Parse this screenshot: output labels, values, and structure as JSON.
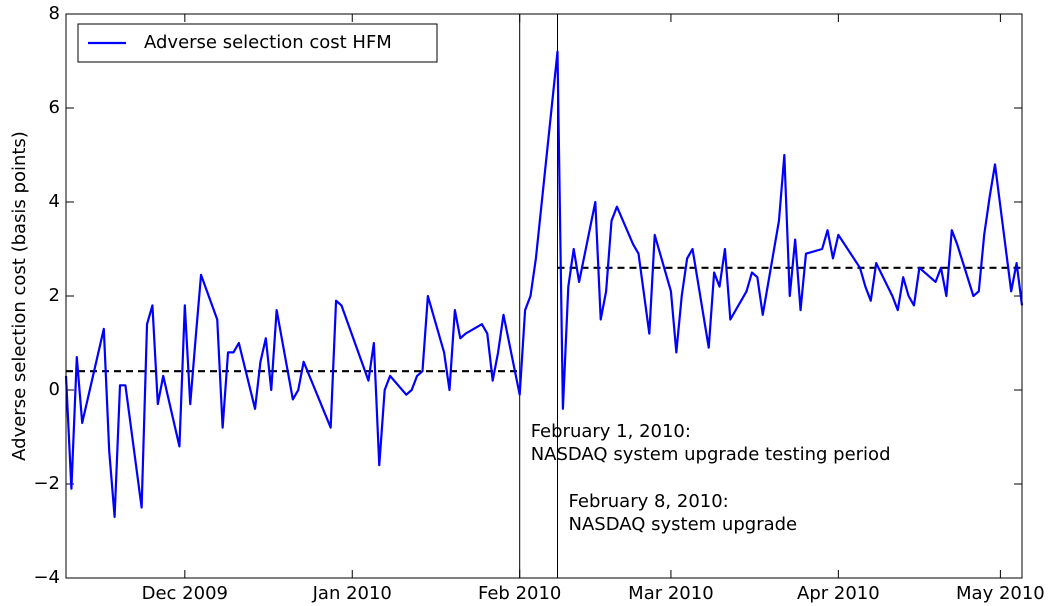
{
  "chart_data": {
    "type": "line",
    "ylabel": "Adverse selection cost (basis points)",
    "x": [
      "2009-11-09",
      "2009-11-10",
      "2009-11-11",
      "2009-11-12",
      "2009-11-16",
      "2009-11-17",
      "2009-11-18",
      "2009-11-19",
      "2009-11-20",
      "2009-11-23",
      "2009-11-24",
      "2009-11-25",
      "2009-11-26",
      "2009-11-27",
      "2009-11-30",
      "2009-12-01",
      "2009-12-02",
      "2009-12-03",
      "2009-12-04",
      "2009-12-07",
      "2009-12-08",
      "2009-12-09",
      "2009-12-10",
      "2009-12-11",
      "2009-12-14",
      "2009-12-15",
      "2009-12-16",
      "2009-12-17",
      "2009-12-18",
      "2009-12-21",
      "2009-12-22",
      "2009-12-23",
      "2009-12-28",
      "2009-12-29",
      "2009-12-30",
      "2010-01-04",
      "2010-01-05",
      "2010-01-06",
      "2010-01-07",
      "2010-01-08",
      "2010-01-11",
      "2010-01-12",
      "2010-01-13",
      "2010-01-14",
      "2010-01-15",
      "2010-01-18",
      "2010-01-19",
      "2010-01-20",
      "2010-01-21",
      "2010-01-22",
      "2010-01-25",
      "2010-01-26",
      "2010-01-27",
      "2010-01-28",
      "2010-01-29",
      "2010-02-01",
      "2010-02-02",
      "2010-02-03",
      "2010-02-04",
      "2010-02-08",
      "2010-02-09",
      "2010-02-10",
      "2010-02-11",
      "2010-02-12",
      "2010-02-15",
      "2010-02-16",
      "2010-02-17",
      "2010-02-18",
      "2010-02-19",
      "2010-02-22",
      "2010-02-23",
      "2010-02-25",
      "2010-02-26",
      "2010-03-01",
      "2010-03-02",
      "2010-03-03",
      "2010-03-04",
      "2010-03-05",
      "2010-03-08",
      "2010-03-09",
      "2010-03-10",
      "2010-03-11",
      "2010-03-12",
      "2010-03-15",
      "2010-03-16",
      "2010-03-17",
      "2010-03-18",
      "2010-03-21",
      "2010-03-22",
      "2010-03-23",
      "2010-03-24",
      "2010-03-25",
      "2010-03-26",
      "2010-03-29",
      "2010-03-30",
      "2010-03-31",
      "2010-04-01",
      "2010-04-05",
      "2010-04-06",
      "2010-04-07",
      "2010-04-08",
      "2010-04-11",
      "2010-04-12",
      "2010-04-13",
      "2010-04-14",
      "2010-04-15",
      "2010-04-16",
      "2010-04-19",
      "2010-04-20",
      "2010-04-21",
      "2010-04-22",
      "2010-04-23",
      "2010-04-26",
      "2010-04-27",
      "2010-04-28",
      "2010-04-29",
      "2010-04-30",
      "2010-05-03",
      "2010-05-04",
      "2010-05-05"
    ],
    "series": [
      {
        "name": "Adverse selection cost HFM",
        "color": "#0000ff",
        "values": [
          0.3,
          -2.1,
          0.7,
          -0.7,
          1.3,
          -1.3,
          -2.7,
          0.1,
          0.1,
          -2.5,
          1.4,
          1.8,
          -0.3,
          0.3,
          -1.2,
          1.8,
          -0.3,
          1.1,
          2.45,
          1.5,
          -0.8,
          0.8,
          0.8,
          1.0,
          -0.4,
          0.6,
          1.1,
          0.0,
          1.7,
          -0.2,
          0.0,
          0.6,
          -0.8,
          1.9,
          1.8,
          0.2,
          1.0,
          -1.6,
          0.0,
          0.3,
          -0.1,
          0.0,
          0.3,
          0.4,
          2.0,
          0.8,
          0.0,
          1.7,
          1.1,
          1.2,
          1.4,
          1.2,
          0.2,
          0.8,
          1.6,
          -0.1,
          1.7,
          2.0,
          2.8,
          7.2,
          -0.4,
          2.2,
          3.0,
          2.3,
          4.0,
          1.5,
          2.1,
          3.6,
          3.9,
          3.1,
          2.9,
          1.2,
          3.3,
          2.1,
          0.8,
          2.0,
          2.8,
          3.0,
          0.9,
          2.5,
          2.2,
          3.0,
          1.5,
          2.1,
          2.5,
          2.4,
          1.6,
          3.6,
          5.0,
          2.0,
          3.2,
          1.7,
          2.9,
          3.0,
          3.4,
          2.8,
          3.3,
          2.6,
          2.2,
          1.9,
          2.7,
          2.0,
          1.7,
          2.4,
          2.0,
          1.8,
          2.6,
          2.3,
          2.6,
          2.0,
          3.4,
          3.1,
          2.0,
          2.1,
          3.3,
          4.1,
          4.8,
          2.1,
          2.7,
          1.8
        ]
      }
    ],
    "reference_lines": [
      {
        "from": "2009-11-09",
        "to": "2010-02-01",
        "value": 0.4,
        "color": "#000000",
        "style": "dashed"
      },
      {
        "from": "2010-02-08",
        "to": "2010-05-05",
        "value": 2.6,
        "color": "#000000",
        "style": "dashed"
      }
    ],
    "vlines": [
      {
        "x": "2010-02-01",
        "label": [
          "February 1, 2010:",
          "NASDAQ system upgrade testing period"
        ]
      },
      {
        "x": "2010-02-08",
        "label": [
          "February 8, 2010:",
          "NASDAQ system upgrade"
        ]
      }
    ],
    "xlim": [
      "2009-11-09",
      "2010-05-05"
    ],
    "xticks": [
      {
        "value": "2009-12-01",
        "label": "Dec 2009"
      },
      {
        "value": "2010-01-01",
        "label": "Jan 2010"
      },
      {
        "value": "2010-02-01",
        "label": "Feb 2010"
      },
      {
        "value": "2010-03-01",
        "label": "Mar 2010"
      },
      {
        "value": "2010-04-01",
        "label": "Apr 2010"
      },
      {
        "value": "2010-05-01",
        "label": "May 2010"
      }
    ],
    "ylim": [
      -4,
      8
    ],
    "yticks": [
      {
        "value": -4,
        "label": "−4"
      },
      {
        "value": -2,
        "label": "−2"
      },
      0,
      2,
      4,
      6,
      8
    ],
    "legend": "upper left"
  }
}
